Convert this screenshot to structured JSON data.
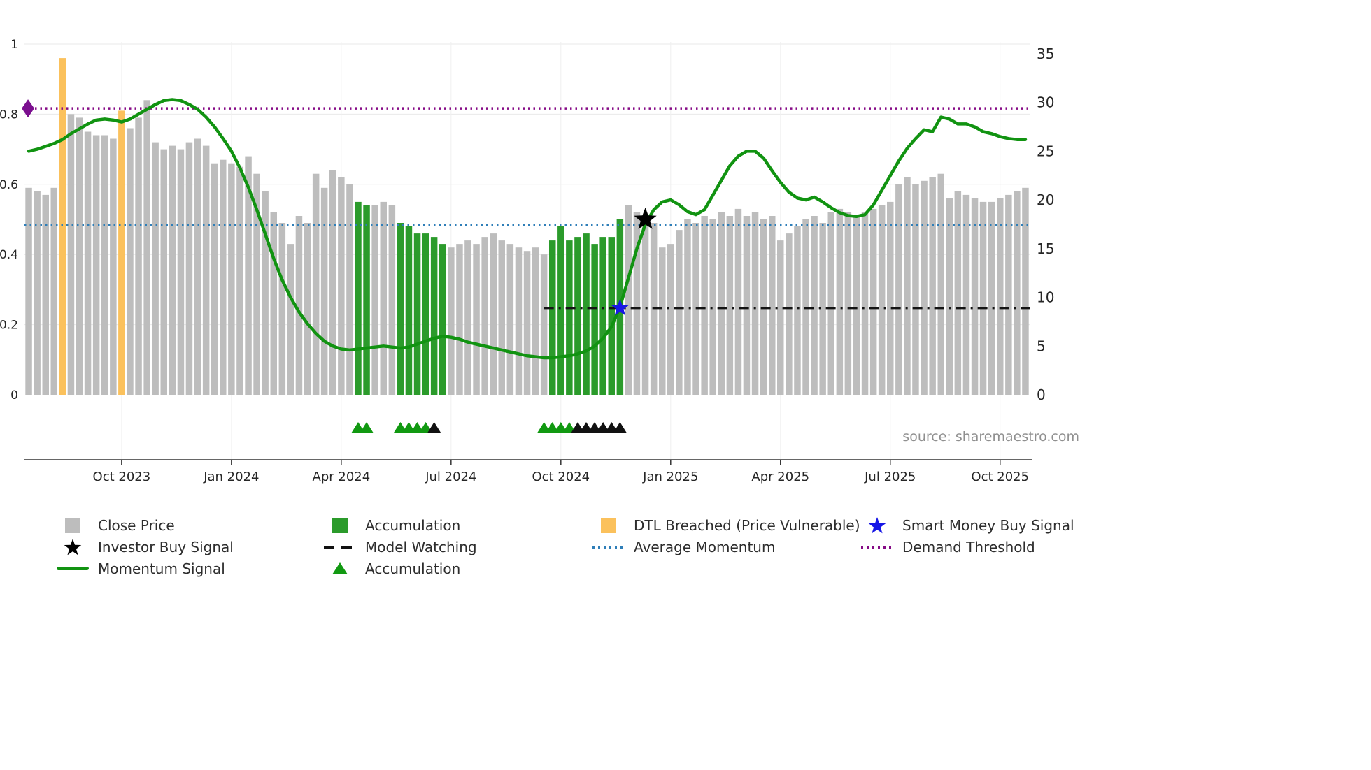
{
  "meta": {
    "source_text": "source: sharemaestro.com"
  },
  "chart_data": {
    "type": "bar",
    "title": "",
    "legend_position": "bottom",
    "grid": true,
    "left_axis": {
      "min": 0,
      "max": 1,
      "ticks": [
        0,
        0.2,
        0.4,
        0.6,
        0.8,
        1
      ]
    },
    "right_axis": {
      "min": 0,
      "max": 35,
      "ticks": [
        0,
        5,
        10,
        15,
        20,
        25,
        30,
        35
      ]
    },
    "x_ticks": [
      {
        "label": "Oct 2023",
        "week": 11
      },
      {
        "label": "Jan 2024",
        "week": 24
      },
      {
        "label": "Apr 2024",
        "week": 37
      },
      {
        "label": "Jul 2024",
        "week": 50
      },
      {
        "label": "Oct 2024",
        "week": 63
      },
      {
        "label": "Jan 2025",
        "week": 76
      },
      {
        "label": "Apr 2025",
        "week": 89
      },
      {
        "label": "Jul 2025",
        "week": 102
      },
      {
        "label": "Oct 2025",
        "week": 115
      }
    ],
    "close_price": {
      "label": "Close Price",
      "axis": "left",
      "color": "#bdbdbd",
      "values": [
        0.59,
        0.58,
        0.57,
        0.59,
        0.96,
        0.8,
        0.79,
        0.75,
        0.74,
        0.74,
        0.73,
        0.81,
        0.76,
        0.79,
        0.84,
        0.72,
        0.7,
        0.71,
        0.7,
        0.72,
        0.73,
        0.71,
        0.66,
        0.67,
        0.66,
        0.65,
        0.68,
        0.63,
        0.58,
        0.52,
        0.49,
        0.43,
        0.51,
        0.49,
        0.63,
        0.59,
        0.64,
        0.62,
        0.6,
        0.55,
        0.54,
        0.54,
        0.55,
        0.54,
        0.49,
        0.48,
        0.46,
        0.46,
        0.45,
        0.43,
        0.42,
        0.43,
        0.44,
        0.43,
        0.45,
        0.46,
        0.44,
        0.43,
        0.42,
        0.41,
        0.42,
        0.4,
        0.44,
        0.48,
        0.44,
        0.45,
        0.46,
        0.43,
        0.45,
        0.45,
        0.5,
        0.54,
        0.52,
        0.51,
        0.49,
        0.42,
        0.43,
        0.47,
        0.5,
        0.49,
        0.51,
        0.5,
        0.52,
        0.51,
        0.53,
        0.51,
        0.52,
        0.5,
        0.51,
        0.44,
        0.46,
        0.48,
        0.5,
        0.51,
        0.49,
        0.52,
        0.53,
        0.52,
        0.51,
        0.52,
        0.53,
        0.54,
        0.55,
        0.6,
        0.62,
        0.6,
        0.61,
        0.62,
        0.63,
        0.56,
        0.58,
        0.57,
        0.56,
        0.55,
        0.55,
        0.56,
        0.57,
        0.58,
        0.59
      ]
    },
    "bar_colors": {
      "accumulation_label": "Accumulation",
      "accumulation_color": "#2b9b2b",
      "accumulation_weeks": [
        39,
        40,
        44,
        45,
        46,
        47,
        48,
        49,
        62,
        63,
        64,
        65,
        66,
        67,
        68,
        69,
        70
      ],
      "dtl_breached_label": "DTL Breached (Price Vulnerable)",
      "dtl_breached_color": "#fbc15c",
      "dtl_breached_weeks": [
        4,
        11
      ]
    },
    "momentum_signal": {
      "label": "Momentum Signal",
      "axis": "right",
      "color": "#119311",
      "width": 4.5,
      "values": [
        25.0,
        25.2,
        25.5,
        25.8,
        26.2,
        26.8,
        27.3,
        27.8,
        28.2,
        28.3,
        28.2,
        28.0,
        28.3,
        28.8,
        29.3,
        29.8,
        30.2,
        30.3,
        30.2,
        29.8,
        29.3,
        28.5,
        27.5,
        26.3,
        25.0,
        23.3,
        21.3,
        19.0,
        16.5,
        14.0,
        11.8,
        10.0,
        8.5,
        7.3,
        6.3,
        5.5,
        5.0,
        4.7,
        4.6,
        4.7,
        4.8,
        4.9,
        5.0,
        4.9,
        4.8,
        4.9,
        5.2,
        5.5,
        5.8,
        6.0,
        5.9,
        5.7,
        5.4,
        5.2,
        5.0,
        4.8,
        4.6,
        4.4,
        4.2,
        4.0,
        3.9,
        3.8,
        3.8,
        3.9,
        4.0,
        4.2,
        4.5,
        5.0,
        5.8,
        7.0,
        9.0,
        12.0,
        15.0,
        17.5,
        19.0,
        19.8,
        20.0,
        19.5,
        18.8,
        18.5,
        19.0,
        20.5,
        22.0,
        23.5,
        24.5,
        25.0,
        25.0,
        24.3,
        23.0,
        21.8,
        20.8,
        20.2,
        20.0,
        20.3,
        19.8,
        19.2,
        18.7,
        18.4,
        18.3,
        18.5,
        19.5,
        21.0,
        22.5,
        24.0,
        25.3,
        26.3,
        27.2,
        27.0,
        28.5,
        28.3,
        27.8,
        27.8,
        27.5,
        27.0,
        26.8,
        26.5,
        26.3,
        26.2,
        26.2
      ]
    },
    "reference_lines": [
      {
        "label": "Average Momentum",
        "data_name": "average-momentum-line",
        "axis": "right",
        "value": 17.4,
        "color": "#2e7eb8",
        "dash": "2.5 5",
        "width": 3,
        "start_week": 0,
        "end_week": 118
      },
      {
        "label": "Demand Threshold",
        "data_name": "demand-threshold-line",
        "axis": "right",
        "value": 29.4,
        "color": "#860b86",
        "dash": "2.5 5",
        "width": 3.5,
        "start_week": 0,
        "end_week": 118
      },
      {
        "label": "Model Watching",
        "data_name": "model-watching-line",
        "axis": "right",
        "value": 8.9,
        "color": "#141414",
        "dash": "14 7 3 7",
        "width": 3,
        "start_week": 61,
        "end_week": 118
      }
    ],
    "markers": [
      {
        "label": "Investor Buy Signal",
        "data_name": "investor-buy-signal-star",
        "shape": "star",
        "color": "#000000",
        "week": 73,
        "axis": "right",
        "value": 18.0,
        "size": 17
      },
      {
        "label": "Smart Money Buy Signal",
        "data_name": "smart-money-buy-signal-star",
        "shape": "star",
        "color": "#1717e6",
        "week": 70,
        "axis": "right",
        "value": 8.9,
        "size": 13
      },
      {
        "label": "Demand Threshold",
        "data_name": "demand-threshold-diamond",
        "shape": "diamond",
        "color": "#7b0f8f",
        "week": 0,
        "axis": "right",
        "value": 29.4,
        "size": 13
      }
    ],
    "accumulation_triangles": [
      {
        "week": 39,
        "color": "#119911"
      },
      {
        "week": 40,
        "color": "#119911"
      },
      {
        "week": 44,
        "color": "#119911"
      },
      {
        "week": 45,
        "color": "#119911"
      },
      {
        "week": 46,
        "color": "#119911"
      },
      {
        "week": 47,
        "color": "#119911"
      },
      {
        "week": 48,
        "color": "#111111"
      },
      {
        "week": 61,
        "color": "#119911"
      },
      {
        "week": 62,
        "color": "#119911"
      },
      {
        "week": 63,
        "color": "#119911"
      },
      {
        "week": 64,
        "color": "#119911"
      },
      {
        "week": 65,
        "color": "#111111"
      },
      {
        "week": 66,
        "color": "#111111"
      },
      {
        "week": 67,
        "color": "#111111"
      },
      {
        "week": 68,
        "color": "#111111"
      },
      {
        "week": 69,
        "color": "#111111"
      },
      {
        "week": 70,
        "color": "#111111"
      }
    ]
  },
  "legend": {
    "col1": [
      {
        "label": "Close Price",
        "icon": "gray-square"
      },
      {
        "label": "Investor Buy Signal",
        "icon": "black-star"
      },
      {
        "label": "Momentum Signal",
        "icon": "green-line"
      }
    ],
    "col2": [
      {
        "label": "Accumulation",
        "icon": "green-square"
      },
      {
        "label": "Model Watching",
        "icon": "black-dashes"
      },
      {
        "label": "Accumulation",
        "icon": "green-triangle"
      }
    ],
    "col3": [
      {
        "label": "DTL Breached (Price Vulnerable)",
        "icon": "orange-square"
      },
      {
        "label": "Average Momentum",
        "icon": "blue-dotted-line"
      }
    ],
    "col4": [
      {
        "label": "Smart Money Buy Signal",
        "icon": "blue-star"
      },
      {
        "label": "Demand Threshold",
        "icon": "purple-dotted-line"
      }
    ]
  }
}
